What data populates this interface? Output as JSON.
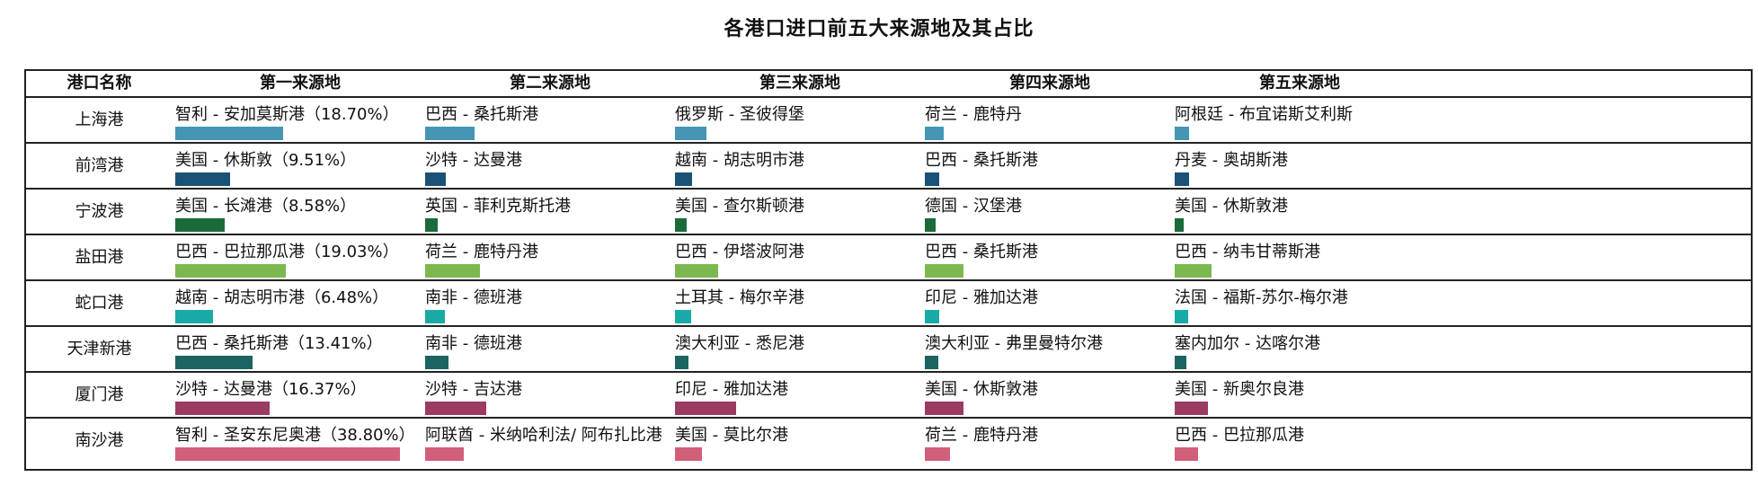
{
  "title": "各港口进口前五大来源地及其占比",
  "headers": [
    "港口名称",
    "第一来源地",
    "第二来源地",
    "第三来源地",
    "第四来源地",
    "第五来源地"
  ],
  "chart_data": {
    "type": "table",
    "columns": [
      "港口名称",
      "第一来源地",
      "第二来源地",
      "第三来源地",
      "第四来源地",
      "第五来源地"
    ],
    "rows": [
      {
        "port": "上海港",
        "color": "#4596b4",
        "first_share": 18.7,
        "sources": [
          "智利 - 安加莫斯港（18.70%）",
          "巴西 - 桑托斯港",
          "俄罗斯 - 圣彼得堡",
          "荷兰 - 鹿特丹",
          "阿根廷 - 布宜诺斯艾利斯"
        ]
      },
      {
        "port": "前湾港",
        "color": "#1a5276",
        "first_share": 9.51,
        "sources": [
          "美国 - 休斯敦（9.51%）",
          "沙特 - 达曼港",
          "越南 - 胡志明市港",
          "巴西 - 桑托斯港",
          "丹麦 - 奥胡斯港"
        ]
      },
      {
        "port": "宁波港",
        "color": "#1b6b3a",
        "first_share": 8.58,
        "sources": [
          "美国 - 长滩港（8.58%）",
          "英国 - 菲利克斯托港",
          "美国 - 查尔斯顿港",
          "德国 - 汉堡港",
          "美国 - 休斯敦港"
        ]
      },
      {
        "port": "盐田港",
        "color": "#7db84e",
        "first_share": 19.03,
        "sources": [
          "巴西 - 巴拉那瓜港（19.03%）",
          "荷兰 - 鹿特丹港",
          "巴西 - 伊塔波阿港",
          "巴西 - 桑托斯港",
          "巴西 - 纳韦甘蒂斯港"
        ]
      },
      {
        "port": "蛇口港",
        "color": "#1aaaa6",
        "first_share": 6.48,
        "sources": [
          "越南 - 胡志明市港（6.48%）",
          "南非 - 德班港",
          "土耳其 - 梅尔辛港",
          "印尼 - 雅加达港",
          "法国 - 福斯-苏尔-梅尔港"
        ]
      },
      {
        "port": "天津新港",
        "color": "#1b6462",
        "first_share": 13.41,
        "sources": [
          "巴西 - 桑托斯港（13.41%）",
          "南非 - 德班港",
          "澳大利亚 - 悉尼港",
          "澳大利亚 - 弗里曼特尔港",
          "塞内加尔 - 达喀尔港"
        ]
      },
      {
        "port": "厦门港",
        "color": "#9c3b61",
        "first_share": 16.37,
        "sources": [
          "沙特 - 达曼港（16.37%）",
          "沙特 - 吉达港",
          "印尼 - 雅加达港",
          "美国 - 休斯敦港",
          "美国 - 新奥尔良港"
        ]
      },
      {
        "port": "南沙港",
        "color": "#d25f7a",
        "first_share": 38.8,
        "sources": [
          "智利 - 圣安东尼奥港（38.80%）",
          "阿联酋 - 米纳哈利法/ 阿布扎比港",
          "美国 - 莫比尔港",
          "荷兰 - 鹿特丹港",
          "巴西 - 巴拉那瓜港"
        ]
      }
    ],
    "secondary_bar_shares": [
      [
        8.5,
        5.5,
        3.2,
        2.5,
        2.5
      ],
      [
        3.6,
        3.0,
        2.5,
        2.5,
        2.0
      ],
      [
        2.2,
        2.0,
        1.8,
        1.6,
        1.5
      ],
      [
        9.5,
        7.4,
        6.6,
        6.3,
        5.3
      ],
      [
        3.4,
        2.8,
        2.5,
        2.3,
        2.2
      ],
      [
        4.0,
        2.4,
        2.3,
        2.0,
        1.8
      ],
      [
        10.6,
        10.6,
        6.6,
        5.8,
        3.2
      ],
      [
        6.6,
        4.7,
        4.4,
        4.1,
        3.2
      ]
    ]
  }
}
